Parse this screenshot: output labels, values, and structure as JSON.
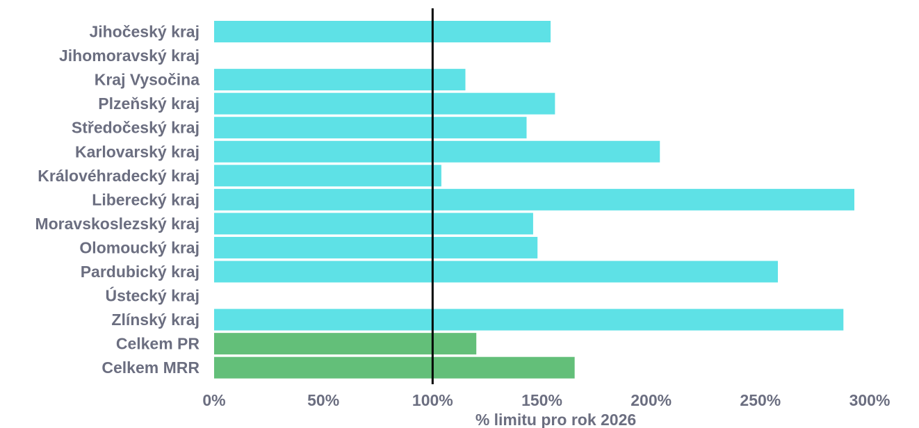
{
  "chart_data": {
    "type": "bar",
    "orientation": "horizontal",
    "title": "",
    "xlabel": "% limitu pro rok 2026",
    "ylabel": "",
    "xlim": [
      0,
      300
    ],
    "xticks": [
      "0%",
      "50%",
      "100%",
      "150%",
      "200%",
      "250%",
      "300%"
    ],
    "xtick_values": [
      0,
      50,
      100,
      150,
      200,
      250,
      300
    ],
    "reference_line": 100,
    "grid": false,
    "categories": [
      "Jihočeský kraj",
      "Jihomoravský kraj",
      "Kraj Vysočina",
      "Plzeňský kraj",
      "Středočeský kraj",
      "Karlovarský kraj",
      "Královéhradecký kraj",
      "Liberecký kraj",
      "Moravskoslezský kraj",
      "Olomoucký kraj",
      "Pardubický kraj",
      "Ústecký kraj",
      "Zlínský kraj",
      "Celkem PR",
      "Celkem MRR"
    ],
    "values": [
      154,
      null,
      115,
      156,
      143,
      204,
      104,
      293,
      146,
      148,
      258,
      null,
      288,
      120,
      165
    ],
    "colors": [
      "#5ee1e6",
      null,
      "#5ee1e6",
      "#5ee1e6",
      "#5ee1e6",
      "#5ee1e6",
      "#5ee1e6",
      "#5ee1e6",
      "#5ee1e6",
      "#5ee1e6",
      "#5ee1e6",
      null,
      "#5ee1e6",
      "#63bf79",
      "#63bf79"
    ]
  },
  "style": {
    "label_color": "#6b6e80",
    "reference_line_color": "#000000"
  }
}
